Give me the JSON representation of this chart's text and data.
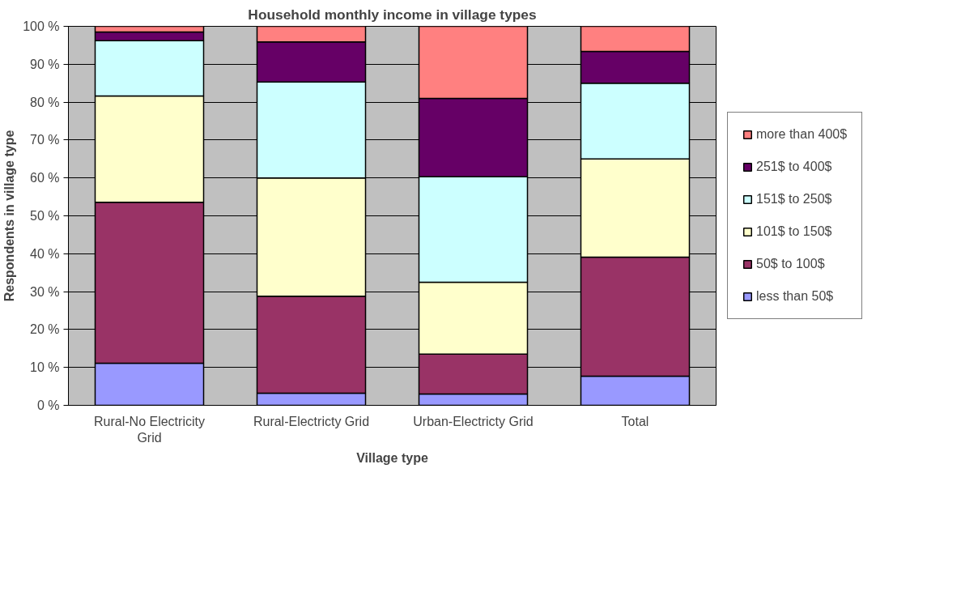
{
  "chart_data": {
    "type": "bar",
    "stacked": true,
    "title": "Household monthly income in village types",
    "xlabel": "Village type",
    "ylabel": "Respondents in village type",
    "categories": [
      "Rural-No Electricity Grid",
      "Rural-Electricty Grid",
      "Urban-Electricty Grid",
      "Total"
    ],
    "series": [
      {
        "name": "less than 50$",
        "color": "#9999ff",
        "values": [
          11.1,
          3.2,
          3.0,
          7.7
        ]
      },
      {
        "name": "50$ to 100$",
        "color": "#993366",
        "values": [
          42.5,
          25.6,
          10.5,
          31.4
        ]
      },
      {
        "name": "101$ to 150$",
        "color": "#ffffcc",
        "values": [
          28.0,
          31.2,
          19.0,
          25.9
        ]
      },
      {
        "name": "151$ to 250$",
        "color": "#ccffff",
        "values": [
          14.6,
          25.3,
          27.8,
          20.0
        ]
      },
      {
        "name": "251$ to 400$",
        "color": "#660066",
        "values": [
          2.3,
          10.6,
          20.7,
          8.4
        ]
      },
      {
        "name": "more than 400$",
        "color": "#ff8080",
        "values": [
          1.5,
          4.1,
          19.0,
          6.6
        ]
      }
    ],
    "ylim": [
      0,
      100
    ],
    "yticks": [
      {
        "value": 0,
        "label": "0 %"
      },
      {
        "value": 10,
        "label": "10 %"
      },
      {
        "value": 20,
        "label": "20 %"
      },
      {
        "value": 30,
        "label": "30 %"
      },
      {
        "value": 40,
        "label": "40 %"
      },
      {
        "value": 50,
        "label": "50 %"
      },
      {
        "value": 60,
        "label": "60 %"
      },
      {
        "value": 70,
        "label": "70 %"
      },
      {
        "value": 80,
        "label": "80 %"
      },
      {
        "value": 90,
        "label": "90 %"
      },
      {
        "value": 100,
        "label": "100 %"
      }
    ],
    "grid": "y",
    "legend": "right"
  }
}
